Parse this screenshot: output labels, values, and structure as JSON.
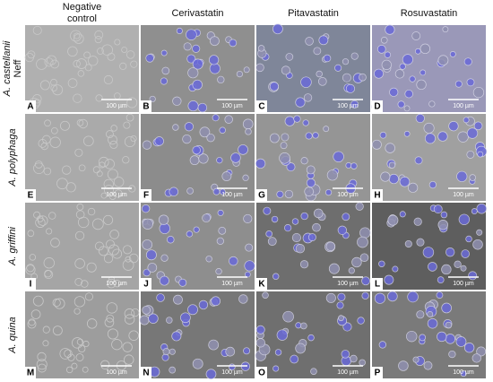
{
  "columns": [
    [
      "Negative",
      "control"
    ],
    [
      "Cerivastatin"
    ],
    [
      "Pitavastatin"
    ],
    [
      "Rosuvastatin"
    ]
  ],
  "rows": [
    {
      "label": "A. castellanii",
      "sublabel": "Neff",
      "panels": [
        {
          "letter": "A",
          "scale": "100 µm"
        },
        {
          "letter": "B",
          "scale": "100 µm"
        },
        {
          "letter": "C",
          "scale": "100 µm"
        },
        {
          "letter": "D",
          "scale": "100 µm"
        }
      ]
    },
    {
      "label": "A. polyphaga",
      "panels": [
        {
          "letter": "E",
          "scale": "100 µm"
        },
        {
          "letter": "F",
          "scale": "100 µm"
        },
        {
          "letter": "G",
          "scale": "100 µm"
        },
        {
          "letter": "H",
          "scale": "100 µm"
        }
      ]
    },
    {
      "label": "A. griffini",
      "panels": [
        {
          "letter": "I",
          "scale": "100 µm"
        },
        {
          "letter": "J",
          "scale": "100 µm"
        },
        {
          "letter": "K",
          "scale": "100 µm"
        },
        {
          "letter": "L",
          "scale": "100 µm"
        }
      ]
    },
    {
      "label": "A. quina",
      "panels": [
        {
          "letter": "M",
          "scale": "100 µm"
        },
        {
          "letter": "N",
          "scale": "100 µm"
        },
        {
          "letter": "O",
          "scale": "100 µm"
        },
        {
          "letter": "P",
          "scale": "100 µm"
        }
      ]
    }
  ]
}
